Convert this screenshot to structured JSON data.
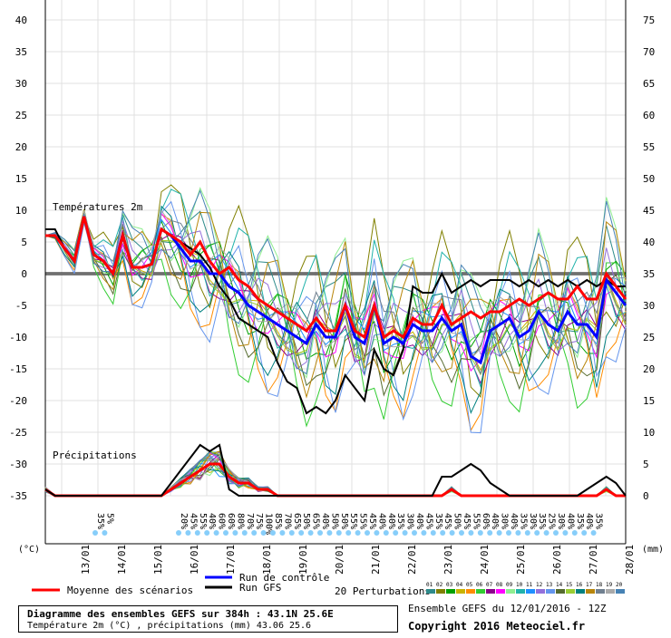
{
  "chart_data": {
    "type": "line",
    "title": "Diagramme des ensembles GEFS sur 384h : 43.1N 25.6E",
    "subtitle": "Température 2m (°C) , précipitations (mm) 43.06 25.6",
    "run_info": "Ensemble GEFS du 12/01/2016 - 12Z",
    "copyright": "Copyright 2016 Meteociel.fr",
    "left_axis_unit": "(°C)",
    "right_axis_unit": "(mm)",
    "left_ticks": [
      40,
      35,
      30,
      25,
      20,
      15,
      10,
      5,
      0,
      -5,
      -10,
      -15,
      -20,
      -25,
      -30,
      -35
    ],
    "right_ticks": [
      75,
      70,
      65,
      60,
      55,
      50,
      45,
      40,
      35,
      30,
      25,
      20,
      15,
      10,
      5,
      0
    ],
    "ylim": [
      -35,
      40
    ],
    "date_labels": [
      "13/01",
      "14/01",
      "15/01",
      "16/01",
      "17/01",
      "18/01",
      "19/01",
      "20/01",
      "21/01",
      "22/01",
      "23/01",
      "24/01",
      "25/01",
      "26/01",
      "27/01",
      "28/01"
    ],
    "section_labels": {
      "temperature": "Températures 2m",
      "precipitation": "Précipitations"
    },
    "legend": {
      "mean": "Moyenne des scénarios",
      "control": "Run de contrôle",
      "gfs": "Run GFS",
      "perturbations": "20 Perturbations",
      "perturbation_numbers": [
        "01",
        "02",
        "03",
        "04",
        "05",
        "06",
        "07",
        "08",
        "09",
        "10",
        "11",
        "12",
        "13",
        "14",
        "15",
        "16",
        "17",
        "18",
        "19",
        "20"
      ]
    },
    "colors": {
      "mean": "#ff0000",
      "control": "#0000ff",
      "gfs": "#000000",
      "perturbations": [
        "#2e8b8b",
        "#808000",
        "#00a000",
        "#c8b400",
        "#ff8c00",
        "#32cd32",
        "#8b008b",
        "#ff00ff",
        "#90ee90",
        "#20b2aa",
        "#1e90ff",
        "#9370db",
        "#6495ed",
        "#556b2f",
        "#9acd32",
        "#008080",
        "#b8860b",
        "#708090",
        "#a9a9a9",
        "#4682b4"
      ]
    },
    "precip_prob_labels": [
      "35%",
      "5%",
      "20%",
      "45%",
      "55%",
      "40%",
      "60%",
      "60%",
      "80%",
      "70%",
      "75%",
      "100%",
      "85%",
      "70%",
      "65%",
      "50%",
      "65%",
      "40%",
      "50%",
      "50%",
      "55%",
      "55%",
      "45%",
      "40%",
      "40%",
      "35%",
      "30%",
      "40%",
      "45%",
      "35%",
      "45%",
      "50%",
      "45%",
      "55%",
      "60%",
      "40%",
      "30%",
      "40%",
      "35%",
      "30%",
      "35%",
      "25%",
      "30%",
      "40%",
      "35%",
      "40%",
      "35%"
    ],
    "series": [
      {
        "name": "Moyenne des scénarios",
        "values": [
          6,
          6,
          4,
          2,
          9,
          3,
          2,
          0,
          6,
          1,
          1,
          1.5,
          7,
          6,
          5,
          3,
          5,
          2,
          0,
          1,
          -1,
          -2,
          -4,
          -5,
          -6,
          -7,
          -8,
          -9,
          -7,
          -9,
          -9,
          -5,
          -9,
          -10,
          -5,
          -10,
          -9,
          -10,
          -7,
          -8,
          -8,
          -5,
          -8,
          -7,
          -6,
          -7,
          -6,
          -6,
          -5,
          -4,
          -5,
          -4,
          -3,
          -4,
          -4,
          -2,
          -4,
          -4,
          0,
          -2,
          -4
        ]
      },
      {
        "name": "Run de contrôle",
        "values": [
          6,
          6,
          4,
          2,
          9,
          3,
          2,
          0,
          6,
          1,
          1,
          1.5,
          7,
          6,
          4,
          2,
          2,
          0,
          0,
          -2,
          -3,
          -5,
          -6,
          -7,
          -8,
          -9,
          -10,
          -11,
          -8,
          -10,
          -10,
          -5,
          -10,
          -11,
          -5,
          -11,
          -10,
          -11,
          -8,
          -9,
          -9,
          -7,
          -9,
          -8,
          -13,
          -14,
          -9,
          -8,
          -7,
          -10,
          -9,
          -6,
          -8,
          -9,
          -6,
          -8,
          -8,
          -10,
          -1,
          -3,
          -5
        ]
      },
      {
        "name": "Run GFS",
        "values": [
          7,
          7,
          4,
          2,
          9,
          3,
          2,
          0,
          6,
          1,
          1,
          1.5,
          7,
          6,
          5,
          4,
          3,
          1,
          -2,
          -4,
          -7,
          -8,
          -9,
          -10,
          -14,
          -17,
          -18,
          -22,
          -21,
          -22,
          -20,
          -16,
          -18,
          -20,
          -12,
          -15,
          -16,
          -12,
          -2,
          -3,
          -3,
          0,
          -3,
          -2,
          -1,
          -2,
          -1,
          -1,
          -1,
          -2,
          -1,
          -2,
          -1,
          -2,
          -1,
          -2,
          -1,
          -2,
          -1,
          -2,
          -2
        ]
      }
    ],
    "precip_series": [
      {
        "name": "Moyenne des scénarios",
        "values": [
          -34,
          -35,
          -35,
          -35,
          -35,
          -35,
          -35,
          -35,
          -35,
          -35,
          -35,
          -35,
          -35,
          -34,
          -33,
          -32,
          -31,
          -30,
          -30,
          -32,
          -33,
          -33,
          -34,
          -34,
          -35,
          -35,
          -35,
          -35,
          -35,
          -35,
          -35,
          -35,
          -35,
          -35,
          -35,
          -35,
          -35,
          -35,
          -35,
          -35,
          -35,
          -35,
          -34,
          -35,
          -35,
          -35,
          -35,
          -35,
          -35,
          -35,
          -35,
          -35,
          -35,
          -35,
          -35,
          -35,
          -35,
          -35,
          -34,
          -35,
          -35
        ]
      },
      {
        "name": "Run GFS",
        "values": [
          -34,
          -35,
          -35,
          -35,
          -35,
          -35,
          -35,
          -35,
          -35,
          -35,
          -35,
          -35,
          -35,
          -33,
          -31,
          -29,
          -27,
          -28,
          -27,
          -34,
          -35,
          -35,
          -35,
          -35,
          -35,
          -35,
          -35,
          -35,
          -35,
          -35,
          -35,
          -35,
          -35,
          -35,
          -35,
          -35,
          -35,
          -35,
          -35,
          -35,
          -35,
          -32,
          -32,
          -31,
          -30,
          -31,
          -33,
          -34,
          -35,
          -35,
          -35,
          -35,
          -35,
          -35,
          -35,
          -35,
          -34,
          -33,
          -32,
          -33,
          -35
        ]
      }
    ]
  }
}
